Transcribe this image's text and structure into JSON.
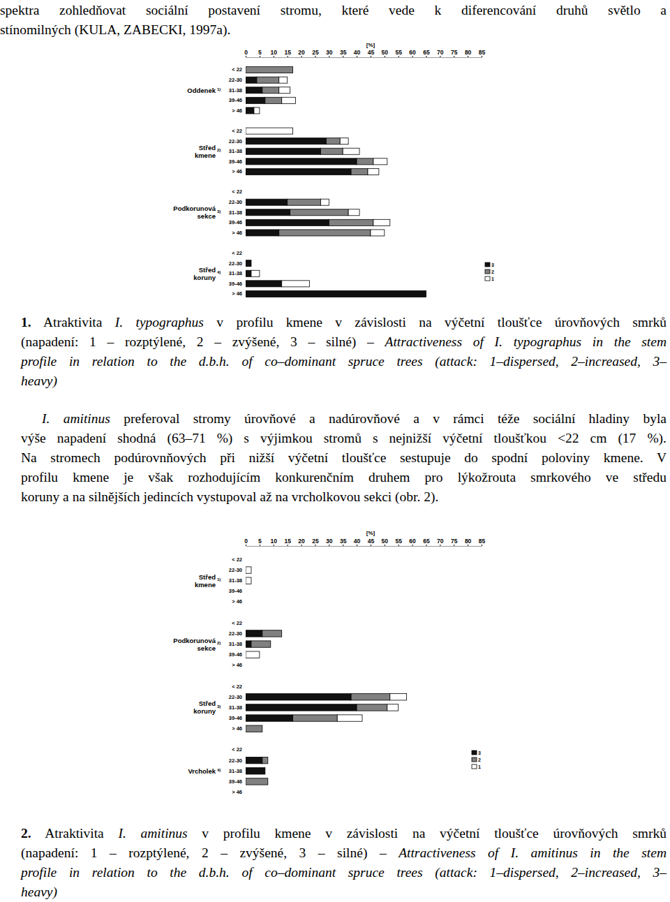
{
  "page": {
    "intro": [
      [
        {
          "text": "spektra zohledňovat sociální postavení stromu, které vede k diferencování druhů světlo a",
          "style": "plain"
        }
      ],
      [
        {
          "text": "stínomilných (KULA, ZABECKI, 1997a).",
          "style": "plain"
        }
      ]
    ],
    "caption_1": [
      [
        {
          "text": "1.",
          "style": "bold"
        },
        {
          "text": " Atraktivita ",
          "style": "plain"
        },
        {
          "text": "I. typographus",
          "style": "italic"
        },
        {
          "text": " v profilu kmene v závislosti na výčetní tloušťce úrovňových smrků",
          "style": "plain"
        }
      ],
      [
        {
          "text": "(napadení: 1 – rozptýlené, 2 – zvýšené, 3 – silné) – ",
          "style": "plain"
        },
        {
          "text": "Attractiveness of I. typographus in the stem",
          "style": "italic"
        }
      ],
      [
        {
          "text": "profile in relation to the d.b.h. of co–dominant spruce trees (attack: 1–dispersed, 2–increased, 3–",
          "style": "italic"
        }
      ],
      [
        {
          "text": "heavy)",
          "style": "italic"
        }
      ]
    ],
    "paragraph": [
      [
        {
          "text": "I. amitinus",
          "style": "italic"
        },
        {
          "text": " preferoval stromy úrovňové a nadúrovňové a v rámci téže sociální hladiny byla",
          "style": "plain"
        }
      ],
      [
        {
          "text": "výše napadení shodná (63–71 %) s výjimkou stromů s nejnižší výčetní tloušťkou <22 cm (17 %).",
          "style": "plain"
        }
      ],
      [
        {
          "text": "Na stromech podúrovnňových při nižší výčetní tloušťce sestupuje do spodní poloviny kmene. V",
          "style": "plain"
        }
      ],
      [
        {
          "text": "profilu kmene je však rozhodujícím konkurenčním druhem pro lýkožrouta smrkového ve středu",
          "style": "plain"
        }
      ],
      [
        {
          "text": "koruny a na silnějších jedincích vystupoval až na vrcholkovou sekci (obr. 2).",
          "style": "plain"
        }
      ]
    ],
    "caption_2": [
      [
        {
          "text": "2.",
          "style": "bold"
        },
        {
          "text": " Atraktivita ",
          "style": "plain"
        },
        {
          "text": "I. amitinus",
          "style": "italic"
        },
        {
          "text": " v profilu kmene v závislosti na výčetní tloušťce úrovňových smrků",
          "style": "plain"
        }
      ],
      [
        {
          "text": "(napadení: 1 – rozptýlené, 2 – zvýšené, 3 – silné) – ",
          "style": "plain"
        },
        {
          "text": "Attractiveness of I. amitinus in the stem",
          "style": "italic"
        }
      ],
      [
        {
          "text": "profile in relation to the d.b.h. of co–dominant spruce trees (attack: 1–dispersed, 2–increased, 3–",
          "style": "italic"
        }
      ],
      [
        {
          "text": "heavy)",
          "style": "italic"
        }
      ]
    ]
  },
  "chart_data": [
    {
      "type": "bar",
      "orientation": "horizontal",
      "stacked": true,
      "legend": "bottom-right",
      "xlabel": "[%]",
      "groups": [
        {
          "label": "Oddenek",
          "note": "1)"
        },
        {
          "label": "Střed kmene",
          "note": "2)"
        },
        {
          "label": "Podkorunová sekce",
          "note": "3)"
        },
        {
          "label": "Střed koruny",
          "note": "4)"
        }
      ],
      "categories": [
        "< 22",
        "22-30",
        "31-38",
        "39-46",
        "> 46",
        "< 22",
        "22-30",
        "31-38",
        "39-46",
        "> 46",
        "< 22",
        "22-30",
        "31-38",
        "39-46",
        "> 46",
        "< 22",
        "22-30",
        "31-38",
        "39-46",
        "> 46"
      ],
      "xlim": [
        0,
        85
      ],
      "xticks": [
        0,
        5,
        10,
        15,
        20,
        25,
        30,
        35,
        40,
        45,
        50,
        55,
        60,
        65,
        70,
        75,
        80,
        85
      ],
      "series": [
        {
          "name": "3",
          "color": "#111111",
          "values": [
            0,
            4,
            6,
            7,
            3,
            0,
            29,
            27,
            40,
            38,
            0,
            15,
            16,
            30,
            12,
            0,
            2,
            2,
            13,
            65
          ]
        },
        {
          "name": "2",
          "color": "#808080",
          "values": [
            17,
            8,
            6,
            6,
            0,
            0,
            5,
            8,
            6,
            6,
            0,
            12,
            21,
            16,
            33,
            0,
            0,
            0,
            0,
            0
          ]
        },
        {
          "name": "1",
          "color": "#ffffff",
          "values": [
            0,
            3,
            4,
            5,
            2,
            17,
            3,
            6,
            5,
            4,
            0,
            3,
            4,
            6,
            5,
            0,
            0,
            3,
            10,
            0
          ]
        }
      ]
    },
    {
      "type": "bar",
      "orientation": "horizontal",
      "stacked": true,
      "legend": "bottom-right",
      "xlabel": "[%]",
      "groups": [
        {
          "label": "Střed kmene",
          "note": "1)"
        },
        {
          "label": "Podkorunová sekce",
          "note": "2)"
        },
        {
          "label": "Střed koruny",
          "note": "3)"
        },
        {
          "label": "Vrcholek",
          "note": "4)"
        }
      ],
      "categories": [
        "< 22",
        "22-30",
        "31-38",
        "39-46",
        "> 46",
        "< 22",
        "22-30",
        "31-38",
        "39-46",
        "> 46",
        "< 22",
        "22-30",
        "31-38",
        "39-46",
        "> 46",
        "< 22",
        "22-30",
        "31-38",
        "39-46",
        "> 46"
      ],
      "xlim": [
        0,
        85
      ],
      "xticks": [
        0,
        5,
        10,
        15,
        20,
        25,
        30,
        35,
        40,
        45,
        50,
        55,
        60,
        65,
        70,
        75,
        80,
        85
      ],
      "series": [
        {
          "name": "3",
          "color": "#111111",
          "values": [
            0,
            0,
            0,
            0,
            0,
            0,
            6,
            2,
            0,
            0,
            0,
            38,
            40,
            17,
            0,
            0,
            6,
            7,
            0,
            0
          ]
        },
        {
          "name": "2",
          "color": "#808080",
          "values": [
            0,
            0,
            0,
            0,
            0,
            0,
            7,
            7,
            0,
            0,
            0,
            14,
            11,
            16,
            6,
            0,
            2,
            0,
            8,
            0
          ]
        },
        {
          "name": "1",
          "color": "#ffffff",
          "values": [
            0,
            2,
            2,
            0,
            0,
            0,
            0,
            0,
            5,
            0,
            0,
            6,
            4,
            9,
            0,
            0,
            0,
            0,
            0,
            0
          ]
        }
      ]
    }
  ]
}
